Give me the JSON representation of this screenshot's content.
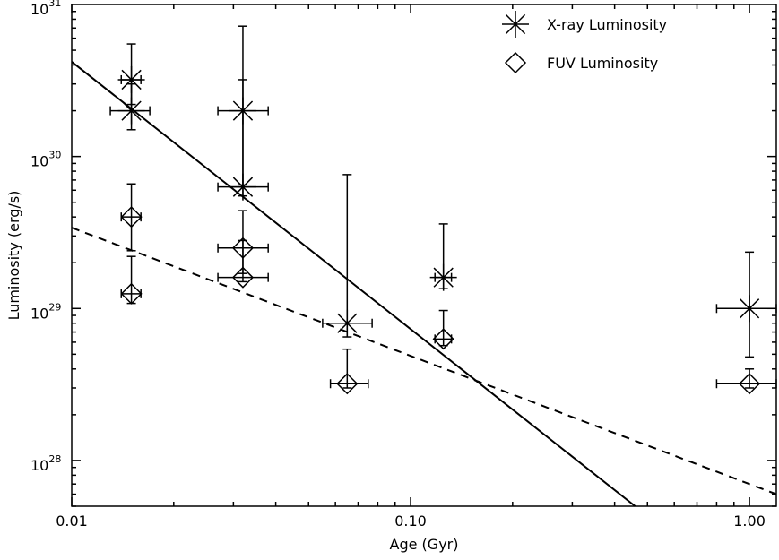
{
  "chart_data": {
    "type": "scatter",
    "xlabel": "Age (Gyr)",
    "ylabel": "Luminosity (erg/s)",
    "x_scale": "log",
    "y_scale": "log",
    "xlim": [
      0.01,
      1.2
    ],
    "ylim": [
      5e+27,
      1e+31
    ],
    "x_ticks": [
      {
        "value": 0.01,
        "label": "0.01"
      },
      {
        "value": 0.1,
        "label": "0.10"
      },
      {
        "value": 1.0,
        "label": "1.00"
      }
    ],
    "y_ticks": [
      {
        "value": 1e+28,
        "base": "10",
        "exp": "28"
      },
      {
        "value": 1e+29,
        "base": "10",
        "exp": "29"
      },
      {
        "value": 1e+30,
        "base": "10",
        "exp": "30"
      },
      {
        "value": 1e+31,
        "base": "10",
        "exp": "31"
      }
    ],
    "legend": {
      "placement": "top-right",
      "entries": [
        {
          "label": "X-ray Luminosity",
          "marker": "asterisk"
        },
        {
          "label": "FUV Luminosity",
          "marker": "diamond"
        }
      ]
    },
    "series": [
      {
        "name": "X-ray Luminosity",
        "marker": "asterisk",
        "points": [
          {
            "x": 0.015,
            "y": 3.2e+30,
            "y_lo": 2.2e+30,
            "y_hi": 5.5e+30,
            "x_lo": 0.014,
            "x_hi": 0.016
          },
          {
            "x": 0.015,
            "y": 2e+30,
            "y_lo": 1.5e+30,
            "y_hi": 3e+30,
            "x_lo": 0.013,
            "x_hi": 0.017
          },
          {
            "x": 0.032,
            "y": 2e+30,
            "y_lo": 6.5e+29,
            "y_hi": 7.2e+30,
            "x_lo": 0.027,
            "x_hi": 0.038
          },
          {
            "x": 0.032,
            "y": 6.3e+29,
            "y_lo": 5.5e+29,
            "y_hi": 3.2e+30,
            "x_lo": 0.027,
            "x_hi": 0.038
          },
          {
            "x": 0.065,
            "y": 8e+28,
            "y_lo": 6.5e+28,
            "y_hi": 7.6e+29,
            "x_lo": 0.055,
            "x_hi": 0.077
          },
          {
            "x": 0.125,
            "y": 1.6e+29,
            "y_lo": 1.35e+29,
            "y_hi": 3.6e+29,
            "x_lo": 0.118,
            "x_hi": 0.132
          },
          {
            "x": 1.0,
            "y": 1e+29,
            "y_lo": 4.8e+28,
            "y_hi": 2.35e+29,
            "x_lo": 0.8,
            "x_hi": 1.2
          }
        ]
      },
      {
        "name": "FUV Luminosity",
        "marker": "diamond",
        "points": [
          {
            "x": 0.015,
            "y": 4e+29,
            "y_lo": 2.4e+29,
            "y_hi": 6.6e+29,
            "x_lo": 0.014,
            "x_hi": 0.016
          },
          {
            "x": 0.015,
            "y": 1.25e+29,
            "y_lo": 1.08e+29,
            "y_hi": 2.2e+29,
            "x_lo": 0.014,
            "x_hi": 0.016
          },
          {
            "x": 0.032,
            "y": 2.5e+29,
            "y_lo": 1.7e+29,
            "y_hi": 4.4e+29,
            "x_lo": 0.027,
            "x_hi": 0.038
          },
          {
            "x": 0.032,
            "y": 1.6e+29,
            "y_lo": 1.5e+29,
            "y_hi": 2.8e+29,
            "x_lo": 0.027,
            "x_hi": 0.038
          },
          {
            "x": 0.065,
            "y": 3.2e+28,
            "y_lo": 3e+28,
            "y_hi": 5.4e+28,
            "x_lo": 0.058,
            "x_hi": 0.075
          },
          {
            "x": 0.125,
            "y": 6.3e+28,
            "y_lo": 5.7e+28,
            "y_hi": 9.7e+28,
            "x_lo": 0.118,
            "x_hi": 0.132
          },
          {
            "x": 1.0,
            "y": 3.2e+28,
            "y_lo": 3e+28,
            "y_hi": 4e+28,
            "x_lo": 0.8,
            "x_hi": 1.2
          }
        ]
      }
    ],
    "fit_lines": [
      {
        "style": "solid",
        "start": {
          "x": 0.01,
          "y": 4.2e+30
        },
        "end": {
          "x": 0.46,
          "y": 5e+27
        }
      },
      {
        "style": "dashed",
        "start": {
          "x": 0.01,
          "y": 3.4e+29
        },
        "end": {
          "x": 1.2,
          "y": 6e+27
        }
      }
    ]
  }
}
